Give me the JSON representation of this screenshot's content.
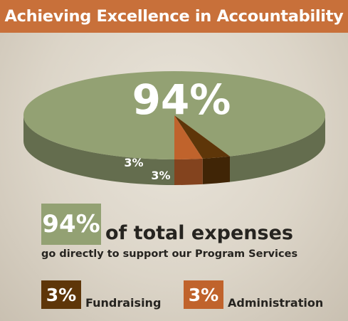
{
  "title": "Achieving Excellence in Accountability",
  "chart_data": {
    "type": "pie",
    "categories": [
      "Program Services",
      "Fundraising",
      "Administration"
    ],
    "values": [
      94,
      3,
      3
    ],
    "data_labels": [
      "94%",
      "3%",
      "3%"
    ],
    "colors": [
      "#93a173",
      "#5e3609",
      "#c0632c"
    ]
  },
  "legend": {
    "main_pct": "94%",
    "main_text": "of total expenses",
    "main_sub": "go directly to support our Program Services",
    "fundraising_pct": "3%",
    "fundraising_label": "Fundraising",
    "administration_pct": "3%",
    "administration_label": "Administration"
  }
}
